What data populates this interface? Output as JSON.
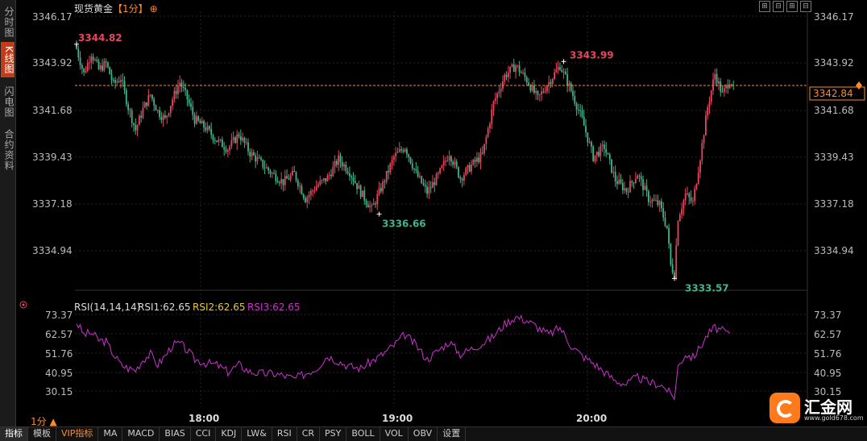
{
  "sidebar": {
    "tabs": [
      {
        "label": "分时图",
        "active": false
      },
      {
        "label": "K线图",
        "active": true
      },
      {
        "label": "闪电图",
        "active": false
      },
      {
        "label": "合约资料",
        "active": false
      }
    ]
  },
  "header": {
    "instrument": "现货黄金",
    "period": "【1分】",
    "add_icon": "⊕"
  },
  "window_buttons": [
    "⊞",
    "⊟",
    "⊞",
    "⊟"
  ],
  "rsi_legend": {
    "label": "RSI(14,14,14)",
    "rsi1": "RSI1:62.65",
    "rsi2": "RSI2:62.65",
    "rsi3": "RSI3:62.65"
  },
  "period_selector": "1分 ▲",
  "bottom_tabs": [
    "指标",
    "模板",
    "VIP指标",
    "MA",
    "MACD",
    "BIAS",
    "CCI",
    "KDJ",
    "LW&",
    "RSI",
    "CR",
    "PSY",
    "BOLL",
    "VOL",
    "OBV",
    "设置"
  ],
  "logo": {
    "name": "汇金网",
    "url": "www.gold678.com"
  },
  "colors": {
    "up": "#e8465f",
    "down": "#43b38a",
    "rsi": "#cc33cc",
    "current": "#ff8a2a"
  },
  "chart_data": [
    {
      "type": "candlestick",
      "title": "现货黄金",
      "x_ticks": [
        "18:00",
        "19:00",
        "20:00"
      ],
      "y_ticks": [
        "3346.17",
        "3343.92",
        "3341.68",
        "3339.43",
        "3337.18",
        "3334.94"
      ],
      "ylim": [
        3333.3,
        3346.17
      ],
      "current_price": "3342.84",
      "annotations": [
        {
          "label": "3344.82",
          "value": 3344.82,
          "kind": "high"
        },
        {
          "label": "3336.66",
          "value": 3336.66,
          "kind": "low"
        },
        {
          "label": "3343.99",
          "value": 3343.99,
          "kind": "high"
        },
        {
          "label": "3333.57",
          "value": 3333.57,
          "kind": "low"
        }
      ],
      "close_path": [
        [
          0,
          3344.6
        ],
        [
          4,
          3343.4
        ],
        [
          8,
          3344.4
        ],
        [
          12,
          3343.6
        ],
        [
          16,
          3343.9
        ],
        [
          20,
          3342.9
        ],
        [
          24,
          3343.2
        ],
        [
          28,
          3341.8
        ],
        [
          32,
          3340.7
        ],
        [
          36,
          3341.7
        ],
        [
          40,
          3342.4
        ],
        [
          44,
          3341.6
        ],
        [
          48,
          3341.2
        ],
        [
          52,
          3342.2
        ],
        [
          56,
          3343.0
        ],
        [
          60,
          3342.2
        ],
        [
          64,
          3341.2
        ],
        [
          70,
          3340.8
        ],
        [
          76,
          3340.2
        ],
        [
          82,
          3339.8
        ],
        [
          88,
          3340.5
        ],
        [
          94,
          3339.6
        ],
        [
          100,
          3339.1
        ],
        [
          106,
          3338.6
        ],
        [
          112,
          3338.2
        ],
        [
          118,
          3338.6
        ],
        [
          124,
          3337.4
        ],
        [
          130,
          3338.0
        ],
        [
          136,
          3338.4
        ],
        [
          142,
          3339.3
        ],
        [
          148,
          3338.7
        ],
        [
          154,
          3337.7
        ],
        [
          160,
          3336.9
        ],
        [
          166,
          3338.1
        ],
        [
          172,
          3339.4
        ],
        [
          178,
          3339.9
        ],
        [
          184,
          3338.6
        ],
        [
          190,
          3337.7
        ],
        [
          196,
          3338.5
        ],
        [
          202,
          3339.6
        ],
        [
          208,
          3338.4
        ],
        [
          214,
          3339.0
        ],
        [
          220,
          3339.5
        ],
        [
          226,
          3342.0
        ],
        [
          232,
          3343.3
        ],
        [
          238,
          3343.8
        ],
        [
          244,
          3343.1
        ],
        [
          250,
          3342.2
        ],
        [
          256,
          3343.0
        ],
        [
          262,
          3343.8
        ],
        [
          268,
          3342.6
        ],
        [
          274,
          3341.2
        ],
        [
          280,
          3339.4
        ],
        [
          286,
          3339.9
        ],
        [
          292,
          3338.3
        ],
        [
          298,
          3337.8
        ],
        [
          304,
          3338.6
        ],
        [
          310,
          3337.4
        ],
        [
          316,
          3337.1
        ],
        [
          320,
          3336.0
        ],
        [
          322,
          3334.2
        ],
        [
          324,
          3333.8
        ],
        [
          326,
          3336.5
        ],
        [
          330,
          3337.6
        ],
        [
          334,
          3337.2
        ],
        [
          338,
          3339.4
        ],
        [
          342,
          3341.8
        ],
        [
          346,
          3343.4
        ],
        [
          350,
          3342.4
        ],
        [
          354,
          3343.1
        ],
        [
          356,
          3342.84
        ]
      ]
    },
    {
      "type": "line",
      "title": "RSI(14,14,14)",
      "series": [
        {
          "name": "RSI1"
        }
      ],
      "y_ticks": [
        "73.37",
        "62.57",
        "51.76",
        "40.95",
        "30.15"
      ],
      "ylim": [
        22,
        78
      ],
      "x_ticks": [
        "18:00",
        "19:00",
        "20:00"
      ],
      "rsi_path": [
        [
          0,
          69
        ],
        [
          4,
          62
        ],
        [
          8,
          63
        ],
        [
          12,
          59
        ],
        [
          16,
          58
        ],
        [
          20,
          51
        ],
        [
          24,
          45
        ],
        [
          28,
          43
        ],
        [
          32,
          42
        ],
        [
          36,
          48
        ],
        [
          40,
          51
        ],
        [
          44,
          45
        ],
        [
          48,
          50
        ],
        [
          52,
          56
        ],
        [
          56,
          57
        ],
        [
          60,
          53
        ],
        [
          64,
          48
        ],
        [
          70,
          46
        ],
        [
          76,
          45
        ],
        [
          82,
          41
        ],
        [
          88,
          45
        ],
        [
          94,
          41
        ],
        [
          100,
          40
        ],
        [
          106,
          40
        ],
        [
          112,
          39
        ],
        [
          118,
          37
        ],
        [
          124,
          40
        ],
        [
          130,
          43
        ],
        [
          136,
          50
        ],
        [
          142,
          47
        ],
        [
          148,
          44
        ],
        [
          154,
          43
        ],
        [
          160,
          47
        ],
        [
          166,
          51
        ],
        [
          172,
          56
        ],
        [
          178,
          62
        ],
        [
          184,
          56
        ],
        [
          190,
          48
        ],
        [
          196,
          53
        ],
        [
          202,
          58
        ],
        [
          208,
          51
        ],
        [
          214,
          54
        ],
        [
          220,
          57
        ],
        [
          226,
          61
        ],
        [
          232,
          68
        ],
        [
          238,
          72
        ],
        [
          244,
          70
        ],
        [
          250,
          66
        ],
        [
          256,
          62
        ],
        [
          262,
          66
        ],
        [
          268,
          56
        ],
        [
          274,
          50
        ],
        [
          280,
          46
        ],
        [
          286,
          41
        ],
        [
          292,
          36
        ],
        [
          298,
          34
        ],
        [
          304,
          38
        ],
        [
          310,
          35
        ],
        [
          316,
          34
        ],
        [
          320,
          31
        ],
        [
          322,
          28
        ],
        [
          324,
          27
        ],
        [
          326,
          44
        ],
        [
          330,
          51
        ],
        [
          334,
          49
        ],
        [
          338,
          55
        ],
        [
          342,
          62
        ],
        [
          346,
          66
        ],
        [
          350,
          64
        ],
        [
          354,
          62.65
        ]
      ]
    }
  ]
}
